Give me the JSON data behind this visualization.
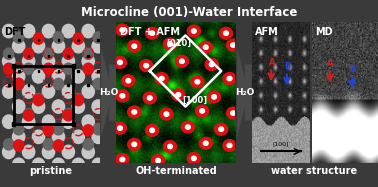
{
  "title": "Microcline (001)-Water Interface",
  "title_fontsize": 8.5,
  "title_fontweight": "bold",
  "panel1_label": "DFT",
  "panel2_label": "DFT + AFM",
  "panel3_label": "AFM",
  "panel4_label": "MD",
  "caption1": "pristine",
  "caption2": "OH-terminated",
  "caption3": "water structure",
  "h2o_label": "H₂O",
  "dir010": "[010]",
  "dir100": "[100]",
  "scale_bar_label": "[100]",
  "bg_color": "#3a3a3a",
  "red_color": "#dd1111",
  "atom_gray_light": "#c8c8c8",
  "atom_gray_dark": "#666666",
  "atom_gray_mid": "#909090",
  "arrow_color": "#555555",
  "white": "#ffffff",
  "black": "#000000",
  "red_arrow": "#cc2222",
  "blue_arrow": "#2244dd"
}
